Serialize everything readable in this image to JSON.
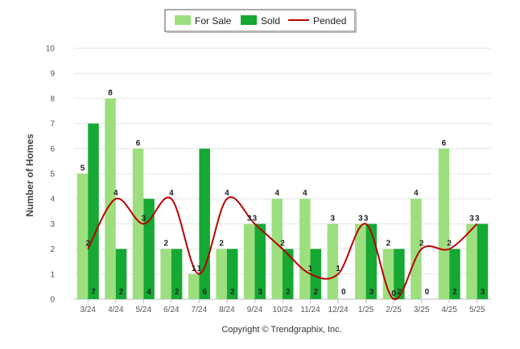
{
  "chart_data": {
    "type": "bar",
    "title": "",
    "xlabel": "",
    "ylabel": "Number of Homes",
    "ylim": [
      0,
      10
    ],
    "yticks": [
      0,
      1,
      2,
      3,
      4,
      5,
      6,
      7,
      8,
      9,
      10
    ],
    "categories": [
      "3/24",
      "4/24",
      "5/24",
      "6/24",
      "7/24",
      "8/24",
      "9/24",
      "10/24",
      "11/24",
      "12/24",
      "1/25",
      "2/25",
      "3/25",
      "4/25",
      "5/25"
    ],
    "series": [
      {
        "name": "For Sale",
        "type": "bar",
        "color": "#9ddf7f",
        "values": [
          5,
          8,
          6,
          2,
          1,
          2,
          3,
          4,
          4,
          3,
          3,
          2,
          4,
          6,
          3
        ]
      },
      {
        "name": "Sold",
        "type": "bar",
        "color": "#15a832",
        "values": [
          7,
          2,
          4,
          2,
          6,
          2,
          3,
          2,
          2,
          0,
          3,
          2,
          0,
          2,
          3
        ]
      },
      {
        "name": "Pended",
        "type": "line",
        "color": "#b80000",
        "values": [
          2,
          4,
          3,
          4,
          1,
          4,
          3,
          2,
          1,
          1,
          3,
          0,
          2,
          2,
          3
        ]
      }
    ],
    "grid": true,
    "legend_position": "top-center"
  },
  "footer": "Copyright © Trendgraphix, Inc."
}
